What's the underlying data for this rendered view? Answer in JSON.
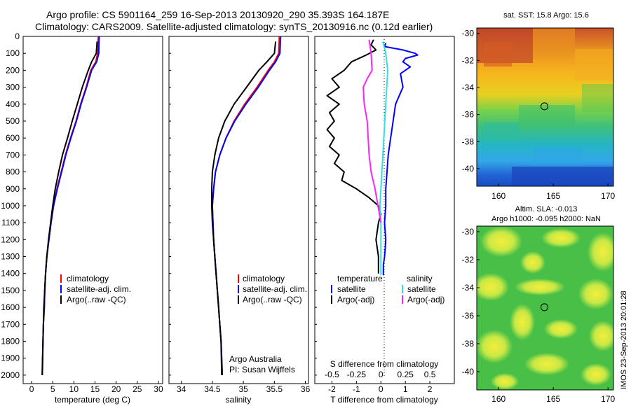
{
  "header": {
    "line1": "Argo profile: CS 5901164_259 16-Sep-2013 20130920_290 35.393S 164.187E",
    "line2": "Climatology: CARS2009. Satellite-adjusted climatology: synTS_20130916.nc (0.12d earlier)"
  },
  "colors": {
    "climatology": "#ff0000",
    "satellite": "#0000ff",
    "argo": "#000000",
    "sal_satellite": "#33e0e0",
    "sal_argo": "#ff22ff"
  },
  "chart_data": [
    {
      "type": "line",
      "name": "temperature-panel",
      "xlabel": "temperature (deg C)",
      "ylabel": "",
      "xlim": [
        -2,
        31
      ],
      "ylim": [
        2050,
        0
      ],
      "y_reversed": true,
      "xticks": [
        "0",
        "5",
        "10",
        "15",
        "20",
        "25",
        "30"
      ],
      "xtick_values": [
        0,
        5,
        10,
        15,
        20,
        25,
        30
      ],
      "yticks": [
        "0",
        "100",
        "200",
        "300",
        "400",
        "500",
        "600",
        "700",
        "800",
        "900",
        "1000",
        "1100",
        "1200",
        "1300",
        "1400",
        "1500",
        "1600",
        "1700",
        "1800",
        "1900",
        "2000"
      ],
      "ytick_values": [
        0,
        100,
        200,
        300,
        400,
        500,
        600,
        700,
        800,
        900,
        1000,
        1100,
        1200,
        1300,
        1400,
        1500,
        1600,
        1700,
        1800,
        1900,
        2000
      ],
      "legend": [
        "climatology",
        "satellite-adj. clim.",
        "Argo(..raw -QC)"
      ],
      "legend_position": "lower-right",
      "series": [
        {
          "name": "climatology",
          "color_key": "climatology",
          "x": [
            15.8,
            15.6,
            15.2,
            14.0,
            12.9,
            11.6,
            10.5,
            9.2,
            8.0,
            7.0,
            6.0,
            5.2,
            4.6,
            4.1,
            3.6,
            3.3,
            3.1,
            3.0,
            2.8,
            2.7,
            2.55
          ],
          "y": [
            0,
            100,
            150,
            200,
            300,
            400,
            500,
            600,
            700,
            800,
            900,
            1000,
            1100,
            1200,
            1300,
            1400,
            1500,
            1600,
            1700,
            1800,
            2000
          ]
        },
        {
          "name": "satellite-adj. clim.",
          "color_key": "satellite",
          "x": [
            16.0,
            15.9,
            15.4,
            14.2,
            13.0,
            11.7,
            10.6,
            9.3,
            8.1,
            7.1,
            6.1,
            5.2,
            4.6,
            4.1,
            3.6,
            3.3,
            3.1,
            3.0,
            2.8,
            2.7,
            2.55
          ],
          "y": [
            0,
            100,
            150,
            200,
            300,
            400,
            500,
            600,
            700,
            800,
            900,
            1000,
            1100,
            1200,
            1300,
            1400,
            1500,
            1600,
            1700,
            1800,
            2000
          ]
        },
        {
          "name": "Argo(..raw -QC)",
          "color_key": "argo",
          "x": [
            15.5,
            15.3,
            14.2,
            13.4,
            12.0,
            10.8,
            9.6,
            8.5,
            7.3,
            6.4,
            5.6,
            5.0,
            4.5,
            4.0,
            3.6,
            3.3,
            3.1,
            2.9,
            2.8,
            2.7,
            2.5
          ],
          "y": [
            30,
            100,
            150,
            200,
            300,
            400,
            500,
            600,
            700,
            800,
            900,
            1000,
            1100,
            1200,
            1300,
            1400,
            1500,
            1600,
            1700,
            1800,
            2000
          ]
        }
      ]
    },
    {
      "type": "line",
      "name": "salinity-panel",
      "xlabel": "salinity",
      "xlim": [
        33.8,
        36.05
      ],
      "ylim": [
        2050,
        0
      ],
      "y_reversed": true,
      "xticks": [
        "34",
        "34.5",
        "35",
        "35.5",
        "36"
      ],
      "xtick_values": [
        34,
        34.5,
        35,
        35.5,
        36
      ],
      "legend": [
        "climatology",
        "satellite-adj. clim.",
        "Argo(..raw -QC)"
      ],
      "legend_position": "center-right",
      "annotation_lines": [
        "Argo Australia",
        "PI: Susan Wijffels"
      ],
      "series": [
        {
          "name": "climatology",
          "color_key": "climatology",
          "x": [
            35.58,
            35.57,
            35.5,
            35.4,
            35.22,
            35.02,
            34.85,
            34.72,
            34.62,
            34.55,
            34.52,
            34.5,
            34.51,
            34.52,
            34.54,
            34.56,
            34.58,
            34.6,
            34.62,
            34.64,
            34.66
          ],
          "y": [
            0,
            100,
            150,
            200,
            300,
            400,
            500,
            600,
            700,
            800,
            900,
            1000,
            1100,
            1200,
            1300,
            1400,
            1500,
            1600,
            1700,
            1800,
            2000
          ]
        },
        {
          "name": "satellite-adj. clim.",
          "color_key": "satellite",
          "x": [
            35.6,
            35.59,
            35.52,
            35.42,
            35.24,
            35.04,
            34.86,
            34.72,
            34.62,
            34.55,
            34.52,
            34.5,
            34.51,
            34.52,
            34.54,
            34.56,
            34.58,
            34.6,
            34.62,
            34.64,
            34.66
          ],
          "y": [
            0,
            100,
            150,
            200,
            300,
            400,
            500,
            600,
            700,
            800,
            900,
            1000,
            1100,
            1200,
            1300,
            1400,
            1500,
            1600,
            1700,
            1800,
            2000
          ]
        },
        {
          "name": "Argo(..raw -QC)",
          "color_key": "argo",
          "x": [
            35.52,
            35.5,
            35.38,
            35.25,
            35.05,
            34.85,
            34.7,
            34.6,
            34.54,
            34.5,
            34.49,
            34.49,
            34.5,
            34.52,
            34.54,
            34.56,
            34.58,
            34.6,
            34.62,
            34.64,
            34.65
          ],
          "y": [
            30,
            100,
            150,
            200,
            300,
            400,
            500,
            600,
            700,
            800,
            900,
            1000,
            1100,
            1200,
            1300,
            1400,
            1500,
            1600,
            1700,
            1800,
            2000
          ]
        }
      ]
    },
    {
      "type": "line",
      "name": "difference-panel",
      "xlabel": "T difference from climatology",
      "xlabel_top": "S difference from climatology",
      "xlim": [
        -2.7,
        3.0
      ],
      "ylim": [
        2050,
        0
      ],
      "y_reversed": true,
      "xticks": [
        "-2",
        "-1",
        "0",
        "1",
        "2"
      ],
      "xtick_values": [
        -2,
        -1,
        0,
        1,
        2
      ],
      "sticks": [
        "-0.5",
        "-0.25",
        "0",
        "0.25",
        "0.5"
      ],
      "stick_values": [
        -0.5,
        -0.25,
        0,
        0.25,
        0.5
      ],
      "s_scale": 4,
      "legend_temperature": {
        "title": "temperature",
        "items": [
          "satellite",
          "Argo(-adj)"
        ]
      },
      "legend_salinity": {
        "title": "salinity",
        "items": [
          "satellite",
          "Argo(-adj)"
        ]
      },
      "series": [
        {
          "name": "temperature satellite",
          "color_key": "satellite",
          "x": [
            0.2,
            0.15,
            0.9,
            1.4,
            1.5,
            1.0,
            0.9,
            1.2,
            0.8,
            0.9,
            0.6,
            0.5,
            0.4,
            0.3,
            0.25,
            0.2,
            0.2,
            0.15,
            0.2,
            0.18,
            0.15,
            0.1,
            0.1,
            0.1
          ],
          "y": [
            40,
            60,
            80,
            100,
            110,
            130,
            150,
            180,
            220,
            300,
            400,
            500,
            600,
            700,
            800,
            900,
            1000,
            1100,
            1200,
            1250,
            1300,
            1350,
            1400,
            1410
          ]
        },
        {
          "name": "temperature Argo(-adj)",
          "color_key": "argo",
          "x": [
            -0.3,
            -0.4,
            -0.2,
            -0.6,
            -1.2,
            -1.5,
            -2.0,
            -1.7,
            -2.2,
            -1.7,
            -2.1,
            -1.9,
            -2.2,
            -1.9,
            -2.1,
            -1.7,
            -1.9,
            -1.5,
            -1.6,
            -1.0,
            -0.5,
            -0.1,
            0.0,
            -0.1,
            -0.2,
            -0.1,
            -0.1
          ],
          "y": [
            20,
            50,
            80,
            110,
            150,
            200,
            250,
            300,
            350,
            400,
            450,
            500,
            550,
            600,
            650,
            700,
            750,
            800,
            850,
            900,
            950,
            1000,
            1050,
            1100,
            1200,
            1300,
            1400
          ]
        },
        {
          "name": "salinity satellite",
          "color_key": "sal_satellite",
          "x": [
            0.02,
            0.05,
            0.07,
            0.06,
            0.05,
            0.04,
            0.03,
            0.02,
            0.01,
            0.0,
            -0.01,
            0.0,
            0.0,
            0.0,
            0.0
          ],
          "y": [
            30,
            100,
            200,
            300,
            400,
            500,
            600,
            700,
            800,
            900,
            1000,
            1100,
            1200,
            1300,
            1410
          ]
        },
        {
          "name": "salinity Argo(-adj)",
          "color_key": "sal_argo",
          "x": [
            -0.12,
            -0.1,
            -0.09,
            -0.14,
            -0.18,
            -0.17,
            -0.14,
            -0.13,
            -0.12,
            -0.1,
            -0.06,
            -0.03,
            0.0
          ],
          "y": [
            20,
            100,
            200,
            250,
            300,
            400,
            500,
            600,
            700,
            800,
            900,
            1000,
            1100
          ]
        }
      ]
    },
    {
      "type": "heatmap",
      "name": "sst-map",
      "title": "sat. SST: 15.8 Argo: 15.6",
      "xticks": [
        "160",
        "165",
        "170"
      ],
      "xtick_values": [
        160,
        165,
        170
      ],
      "yticks": [
        "-30",
        "-32",
        "-34",
        "-36",
        "-38",
        "-40"
      ],
      "ytick_values": [
        -30,
        -32,
        -34,
        -36,
        -38,
        -40
      ],
      "xlim": [
        158,
        170.5
      ],
      "ylim": [
        -41.3,
        -29.6
      ],
      "marker": {
        "lon": 164.187,
        "lat": -35.393
      }
    },
    {
      "type": "heatmap",
      "name": "sla-map",
      "title_line1": "Altim. SLA: -0.013",
      "title_line2": "Argo h1000: -0.095 h2000: NaN",
      "xticks": [
        "160",
        "165",
        "170"
      ],
      "xtick_values": [
        160,
        165,
        170
      ],
      "yticks": [
        "-30",
        "-32",
        "-34",
        "-36",
        "-38",
        "-40"
      ],
      "ytick_values": [
        -30,
        -32,
        -34,
        -36,
        -38,
        -40
      ],
      "xlim": [
        158,
        170.5
      ],
      "ylim": [
        -41.3,
        -29.6
      ],
      "marker": {
        "lon": 164.187,
        "lat": -35.393
      }
    }
  ],
  "side_stamp": "IMOS 23-Sep-2013 20:01:28"
}
